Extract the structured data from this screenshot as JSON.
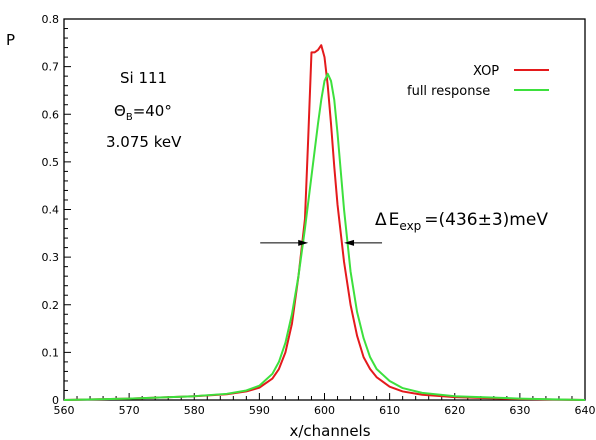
{
  "chart_data": {
    "type": "line",
    "xlabel": "x/channels",
    "ylabel": "P",
    "xlim": [
      560,
      640
    ],
    "ylim": [
      0,
      0.8
    ],
    "x_ticks": [
      560,
      570,
      580,
      590,
      600,
      610,
      620,
      630,
      640
    ],
    "y_ticks": [
      0,
      0.1,
      0.2,
      0.3,
      0.4,
      0.5,
      0.6,
      0.7,
      0.8
    ],
    "x_tick_labels": [
      "560",
      "570",
      "580",
      "590",
      "600",
      "610",
      "620",
      "630",
      "640"
    ],
    "y_tick_labels": [
      "0",
      "0.1",
      "0.2",
      "0.3",
      "0.4",
      "0.5",
      "0.6",
      "0.7",
      "0.8"
    ],
    "grid": false,
    "legend_position": "top-right",
    "series": [
      {
        "name": "XOP",
        "color": "#e41a1c",
        "x": [
          560,
          570,
          580,
          585,
          588,
          590,
          592,
          593,
          594,
          595,
          596,
          597,
          597.5,
          598,
          598.5,
          599,
          599.5,
          600,
          600.5,
          601,
          601.5,
          602,
          603,
          604,
          605,
          606,
          607,
          608,
          610,
          612,
          615,
          620,
          630,
          640
        ],
        "y": [
          0.0,
          0.003,
          0.008,
          0.012,
          0.018,
          0.026,
          0.045,
          0.065,
          0.1,
          0.16,
          0.26,
          0.38,
          0.55,
          0.73,
          0.73,
          0.735,
          0.745,
          0.72,
          0.66,
          0.58,
          0.49,
          0.41,
          0.29,
          0.2,
          0.135,
          0.09,
          0.065,
          0.048,
          0.028,
          0.018,
          0.011,
          0.006,
          0.002,
          0.0
        ]
      },
      {
        "name": "full response",
        "color": "#3de03d",
        "x": [
          560,
          570,
          580,
          585,
          588,
          590,
          592,
          593,
          594,
          595,
          596,
          597,
          598,
          599,
          599.5,
          600,
          600.5,
          601,
          601.5,
          602,
          602.5,
          603,
          604,
          605,
          606,
          607,
          608,
          610,
          612,
          615,
          620,
          630,
          640
        ],
        "y": [
          0.0,
          0.003,
          0.008,
          0.013,
          0.02,
          0.03,
          0.055,
          0.08,
          0.12,
          0.18,
          0.26,
          0.36,
          0.47,
          0.58,
          0.63,
          0.67,
          0.685,
          0.67,
          0.63,
          0.56,
          0.48,
          0.4,
          0.27,
          0.185,
          0.13,
          0.09,
          0.065,
          0.04,
          0.025,
          0.015,
          0.008,
          0.003,
          0.0
        ]
      }
    ],
    "annotations": {
      "crystal": "Si 111",
      "angle_symbol": "Θ",
      "angle_subscript": "B",
      "angle_value": "=40°",
      "energy": "3.075 keV",
      "fwhm_delta": "Δ",
      "fwhm_e": "E",
      "fwhm_subscript": "exp",
      "fwhm_value": "=(436±3)meV",
      "fwhm_y": 0.33,
      "fwhm_x_left": 597.5,
      "fwhm_x_right": 603
    }
  }
}
